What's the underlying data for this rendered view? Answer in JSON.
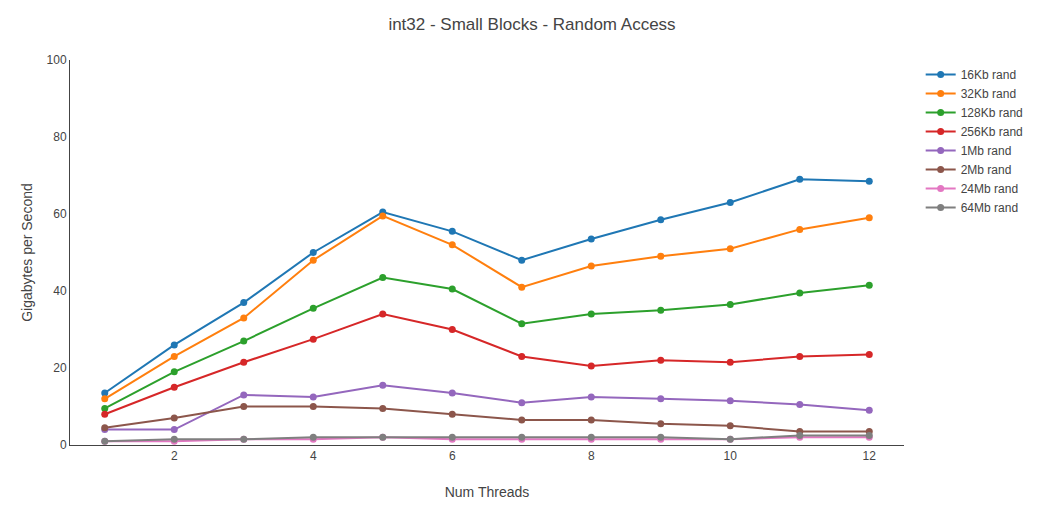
{
  "chart_data": {
    "type": "line",
    "title": "int32 - Small Blocks - Random Access",
    "xlabel": "Num Threads",
    "ylabel": "Gigabytes per Second",
    "x": [
      1,
      2,
      3,
      4,
      5,
      6,
      7,
      8,
      9,
      10,
      11,
      12
    ],
    "series": [
      {
        "name": "16Kb rand",
        "color": "#1f77b4",
        "values": [
          13.5,
          26,
          37,
          50,
          60.5,
          55.5,
          48,
          53.5,
          58.5,
          63,
          69,
          68.5
        ]
      },
      {
        "name": "32Kb rand",
        "color": "#ff7f0e",
        "values": [
          12,
          23,
          33,
          48,
          59.5,
          52,
          41,
          46.5,
          49,
          51,
          56,
          59
        ]
      },
      {
        "name": "128Kb rand",
        "color": "#2ca02c",
        "values": [
          9.5,
          19,
          27,
          35.5,
          43.5,
          40.5,
          31.5,
          34,
          35,
          36.5,
          39.5,
          41.5
        ]
      },
      {
        "name": "256Kb rand",
        "color": "#d62728",
        "values": [
          8,
          15,
          21.5,
          27.5,
          34,
          30,
          23,
          20.5,
          22,
          21.5,
          23,
          23.5
        ]
      },
      {
        "name": "1Mb rand",
        "color": "#9467bd",
        "values": [
          4,
          4,
          13,
          12.5,
          15.5,
          13.5,
          11,
          12.5,
          12,
          11.5,
          10.5,
          9
        ]
      },
      {
        "name": "2Mb rand",
        "color": "#8c564b",
        "values": [
          4.5,
          7,
          10,
          10,
          9.5,
          8,
          6.5,
          6.5,
          5.5,
          5,
          3.5,
          3.5
        ]
      },
      {
        "name": "24Mb rand",
        "color": "#e377c2",
        "values": [
          1,
          1,
          1.5,
          1.5,
          2,
          1.5,
          1.5,
          1.5,
          1.5,
          1.5,
          2,
          2
        ]
      },
      {
        "name": "64Mb rand",
        "color": "#7f7f7f",
        "values": [
          1,
          1.5,
          1.5,
          2,
          2,
          2,
          2,
          2,
          2,
          1.5,
          2.5,
          2.5
        ]
      }
    ],
    "xlim": [
      0.5,
      12.5
    ],
    "xticks": [
      2,
      4,
      6,
      8,
      10,
      12
    ],
    "ylim": [
      0,
      100
    ],
    "yticks": [
      0,
      20,
      40,
      60,
      80,
      100
    ],
    "marker": "circle",
    "line_style": "solid",
    "grid": false,
    "legend": "right"
  }
}
